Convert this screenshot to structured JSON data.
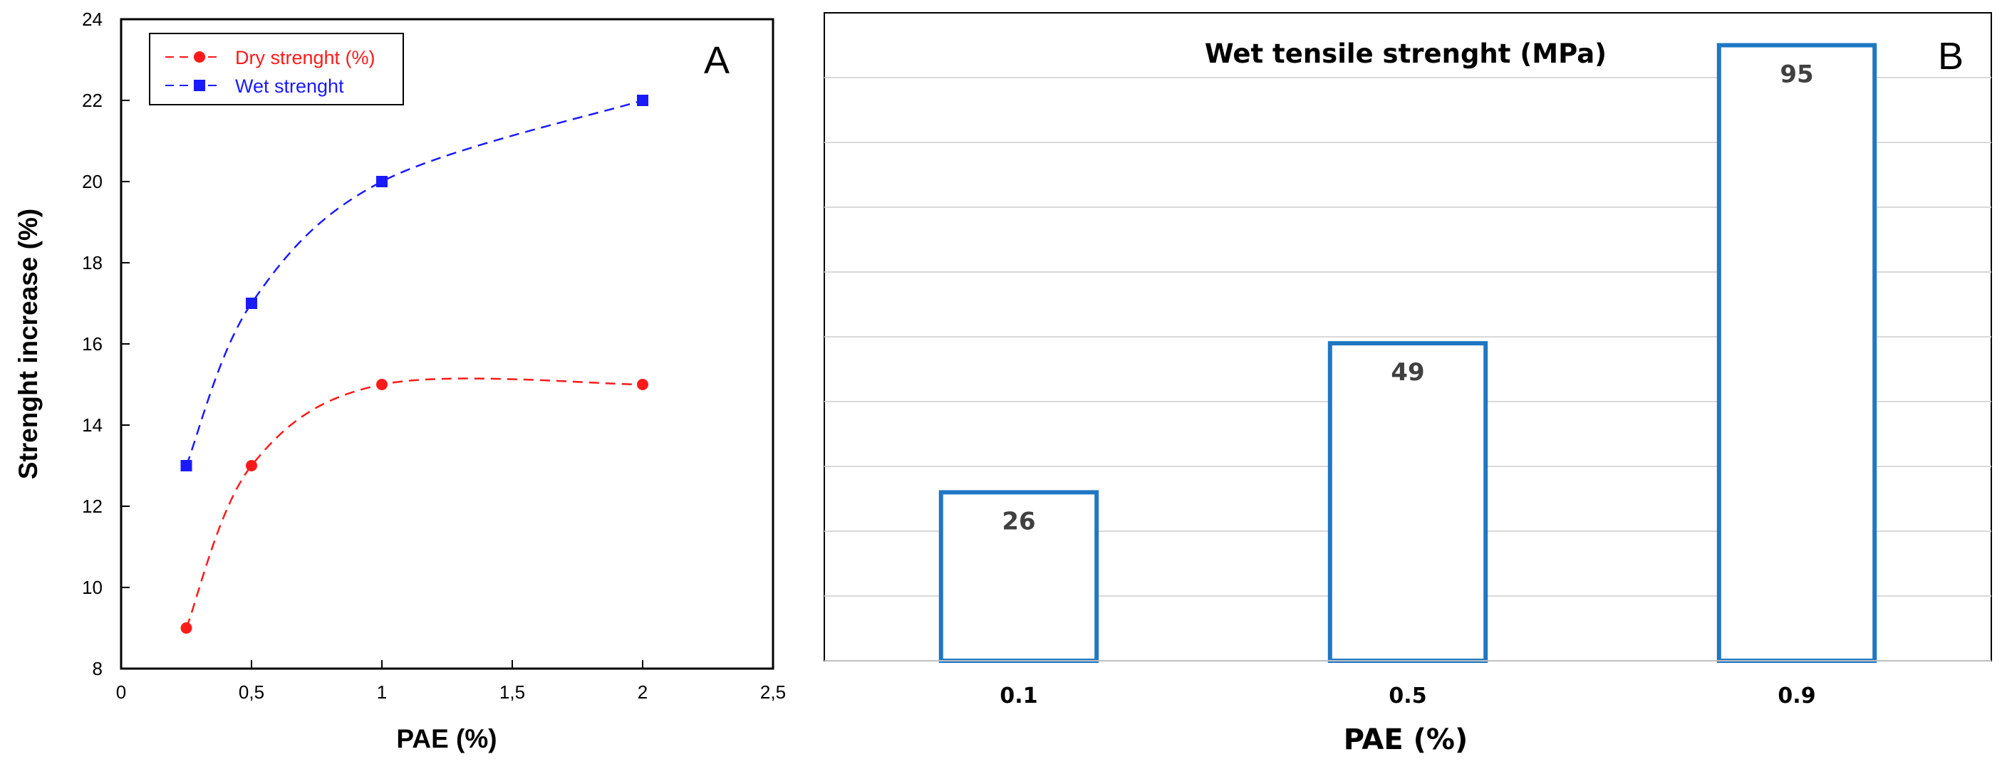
{
  "chart_data": [
    {
      "type": "line",
      "panel_label": "A",
      "xlabel": "PAE (%)",
      "ylabel": "Strenght increase (%)",
      "xlim": [
        0,
        2.5
      ],
      "ylim": [
        8,
        24
      ],
      "x_tick_labels": [
        "0",
        "0,5",
        "1",
        "1,5",
        "2",
        "2,5"
      ],
      "x_tick_values": [
        0,
        0.5,
        1,
        1.5,
        2,
        2.5
      ],
      "y_ticks": [
        8,
        10,
        12,
        14,
        16,
        18,
        20,
        22,
        24
      ],
      "legend_position": "top-left",
      "grid": false,
      "series": [
        {
          "name": "Dry strenght (%)",
          "color": "#ff1a1a",
          "marker": "circle",
          "line_style": "dashed",
          "x": [
            0.25,
            0.5,
            1,
            2
          ],
          "y": [
            9,
            13,
            15,
            15
          ]
        },
        {
          "name": "Wet strenght",
          "color": "#1a1aff",
          "marker": "square",
          "line_style": "dashed",
          "x": [
            0.25,
            0.5,
            1,
            2
          ],
          "y": [
            13,
            17,
            20,
            22
          ]
        }
      ]
    },
    {
      "type": "bar",
      "panel_label": "B",
      "title": "Wet tensile strenght (MPa)",
      "xlabel": "PAE (%)",
      "ylabel": "",
      "categories": [
        "0.1",
        "0.5",
        "0.9"
      ],
      "values": [
        26,
        49,
        95
      ],
      "ylim": [
        0,
        100
      ],
      "bar_style": "outline",
      "bar_color": "#1f77c4",
      "grid": true
    }
  ]
}
